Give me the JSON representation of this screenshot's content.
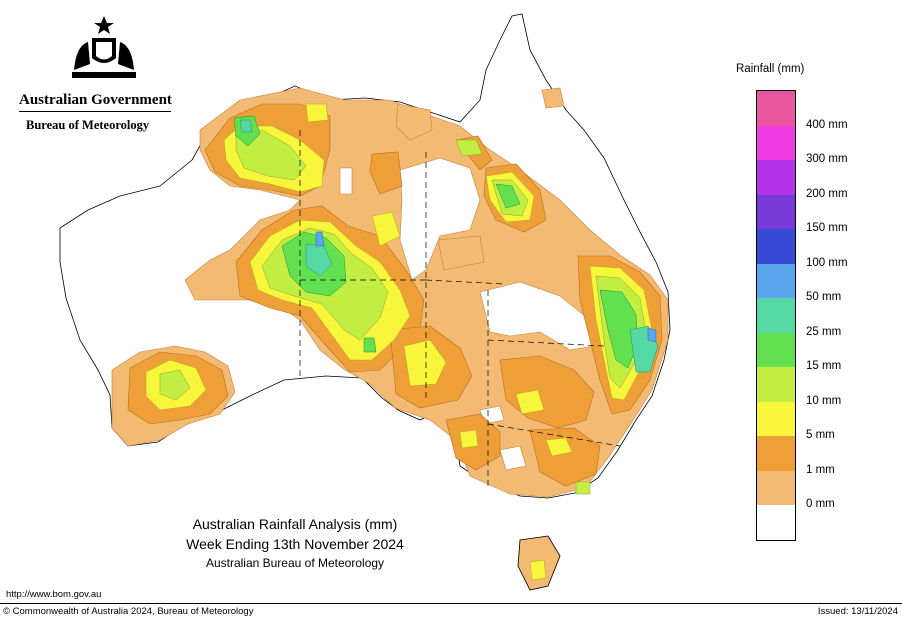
{
  "header": {
    "organisation": "Australian Government",
    "agency": "Bureau of Meteorology"
  },
  "map": {
    "title": "Australian Rainfall Analysis (mm)",
    "period": "Week Ending 13th November 2024",
    "producer": "Australian Bureau of Meteorology"
  },
  "legend": {
    "title": "Rainfall (mm)",
    "classes": [
      {
        "label": "",
        "color": "#e8569e"
      },
      {
        "label": "400 mm",
        "color": "#f03ce0"
      },
      {
        "label": "300 mm",
        "color": "#b232e8"
      },
      {
        "label": "200 mm",
        "color": "#7a3ad8"
      },
      {
        "label": "150 mm",
        "color": "#3a4ad8"
      },
      {
        "label": "100 mm",
        "color": "#5aa6ec"
      },
      {
        "label": "50 mm",
        "color": "#56d8a4"
      },
      {
        "label": "25 mm",
        "color": "#62e050"
      },
      {
        "label": "15 mm",
        "color": "#c2ee44"
      },
      {
        "label": "10 mm",
        "color": "#f7f53c"
      },
      {
        "label": "5 mm",
        "color": "#ef9f38"
      },
      {
        "label": "1 mm",
        "color": "#f2ba72"
      },
      {
        "label": "",
        "color": "#ffffff"
      }
    ],
    "zero_label": "0 mm"
  },
  "footer": {
    "url": "http://www.bom.gov.au",
    "copyright": "© Commonwealth of Australia 2024, Bureau of Meteorology",
    "issued": "Issued: 13/11/2024"
  }
}
